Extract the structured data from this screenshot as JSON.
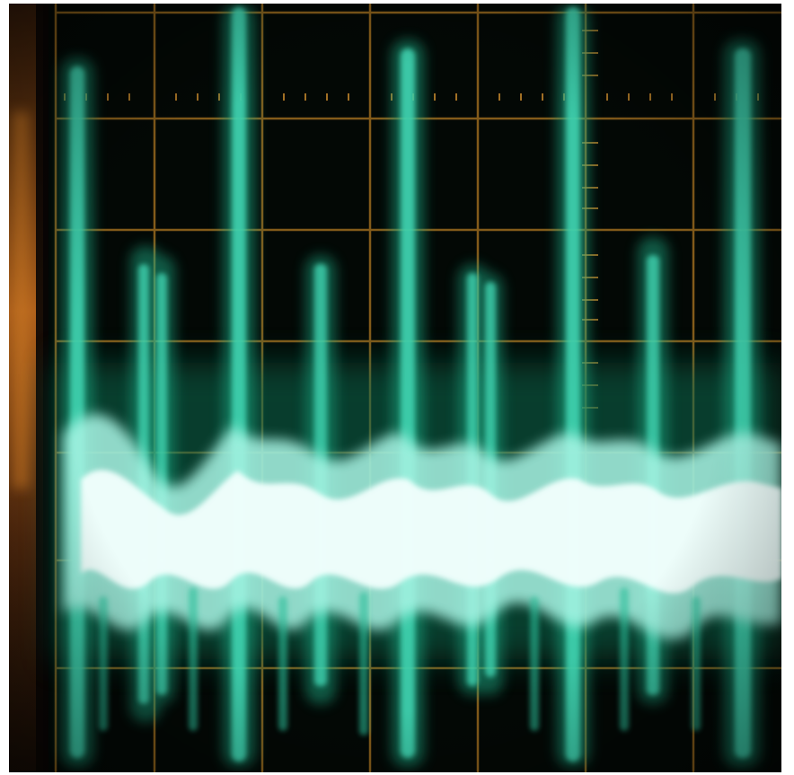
{
  "image": {
    "subject": "oscilloscope-screen",
    "has_visible_text": false
  },
  "colors": {
    "frame_border": "#ffffff",
    "screen_background": "#030805",
    "graticule": "#9a6a1e",
    "graticule_ticks": "#c98b2c",
    "trace_glow": "#0f6b4f",
    "trace_spike": "#3fd3b0",
    "trace_core": "#f2fffd",
    "bezel_edge": "#c0621a"
  },
  "icons": {
    "graticule": "grid-lines",
    "waveform": "signal-trace"
  }
}
